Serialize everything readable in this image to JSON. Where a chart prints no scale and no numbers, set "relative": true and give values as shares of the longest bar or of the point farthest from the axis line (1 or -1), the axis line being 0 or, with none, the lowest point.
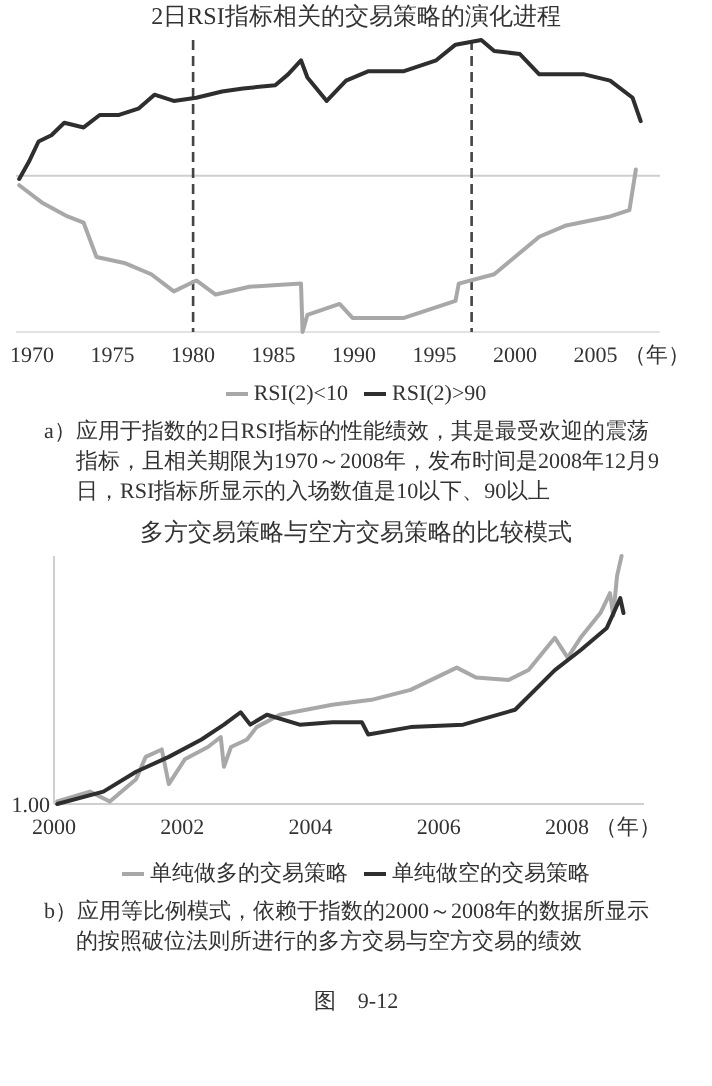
{
  "chart_data": [
    {
      "type": "line",
      "title": "2日RSI指标相关的交易策略的演化进程",
      "relative": true,
      "xlabel": "（年）",
      "xlim": [
        1969,
        2009
      ],
      "xticks": [
        1970,
        1975,
        1980,
        1985,
        1990,
        1995,
        2000,
        2005
      ],
      "legend": "bottom",
      "grid": false,
      "ref_lines": [
        {
          "axis": "x",
          "value": 1980,
          "color": "#444444",
          "line_style": "dashed"
        },
        {
          "axis": "x",
          "value": 1997.3,
          "color": "#444444",
          "line_style": "dashed"
        }
      ],
      "series": [
        {
          "name": "RSI(2)<10",
          "color": "#a8a8a8",
          "x": [
            1969.2,
            1970.6,
            1972.2,
            1973.2,
            1974.0,
            1975.8,
            1977.4,
            1978.8,
            1980.2,
            1981.4,
            1983.5,
            1986.7,
            1986.8,
            1987.1,
            1989.1,
            1989.9,
            1993.1,
            1996.3,
            1996.5,
            1998.7,
            2001.5,
            2003.1,
            2005.9,
            2007.1,
            2007.5
          ],
          "values": [
            -0.06,
            -0.17,
            -0.26,
            -0.3,
            -0.52,
            -0.56,
            -0.63,
            -0.74,
            -0.67,
            -0.76,
            -0.71,
            -0.69,
            -1.0,
            -0.89,
            -0.82,
            -0.91,
            -0.91,
            -0.8,
            -0.69,
            -0.63,
            -0.39,
            -0.32,
            -0.26,
            -0.22,
            0.04
          ]
        },
        {
          "name": "RSI(2)>90",
          "color": "#2e2e2e",
          "x": [
            1969.2,
            1969.8,
            1970.4,
            1971.2,
            1972.0,
            1973.2,
            1974.2,
            1975.4,
            1976.6,
            1977.6,
            1978.8,
            1980.2,
            1981.8,
            1983.1,
            1985.1,
            1985.9,
            1986.7,
            1987.1,
            1988.3,
            1989.5,
            1990.9,
            1993.1,
            1995.1,
            1996.3,
            1997.9,
            1998.7,
            2000.3,
            2001.5,
            2004.3,
            2005.9,
            2007.3,
            2007.8
          ],
          "values": [
            -0.02,
            0.09,
            0.22,
            0.26,
            0.34,
            0.31,
            0.39,
            0.39,
            0.43,
            0.52,
            0.48,
            0.5,
            0.54,
            0.56,
            0.58,
            0.65,
            0.74,
            0.63,
            0.48,
            0.61,
            0.67,
            0.67,
            0.74,
            0.84,
            0.87,
            0.8,
            0.78,
            0.65,
            0.65,
            0.61,
            0.5,
            0.35
          ]
        }
      ],
      "annotations": [
        "a）应用于指数的2日RSI指标的性能绩效，其是最受欢迎的震荡指标，且相关期限为1970～2008年，发布时间是2008年12月9日，RSI指标所显示的入场数值是10以下、90以上"
      ]
    },
    {
      "type": "line",
      "title": "多方交易策略与空方交易策略的比较模式",
      "relative": true,
      "xlabel": "（年）",
      "xlim": [
        2000,
        2009.2
      ],
      "xticks": [
        2000,
        2002,
        2004,
        2006,
        2008
      ],
      "legend": "bottom",
      "grid": false,
      "series": [
        {
          "name": "单纯做多的交易策略",
          "color": "#a8a8a8",
          "x": [
            2000.05,
            2000.56,
            2000.87,
            2001.28,
            2001.43,
            2001.68,
            2001.79,
            2002.04,
            2002.4,
            2002.6,
            2002.65,
            2002.76,
            2003.01,
            2003.16,
            2003.52,
            2004.34,
            2004.95,
            2005.56,
            2006.28,
            2006.58,
            2007.09,
            2007.4,
            2007.81,
            2008.01,
            2008.21,
            2008.52,
            2008.67,
            2008.72,
            2008.78,
            2008.85
          ],
          "values": [
            0.01,
            0.05,
            0.01,
            0.1,
            0.19,
            0.22,
            0.08,
            0.18,
            0.23,
            0.27,
            0.15,
            0.23,
            0.26,
            0.31,
            0.36,
            0.4,
            0.42,
            0.46,
            0.55,
            0.51,
            0.5,
            0.54,
            0.67,
            0.59,
            0.67,
            0.77,
            0.85,
            0.76,
            0.92,
            1.0
          ]
        },
        {
          "name": "单纯做空的交易策略",
          "color": "#2e2e2e",
          "x": [
            2000.05,
            2000.77,
            2001.28,
            2001.79,
            2002.3,
            2002.65,
            2002.91,
            2003.06,
            2003.32,
            2003.83,
            2004.34,
            2004.8,
            2004.9,
            2005.56,
            2006.38,
            2007.19,
            2007.81,
            2008.21,
            2008.62,
            2008.83,
            2008.88
          ],
          "values": [
            0,
            0.05,
            0.13,
            0.19,
            0.26,
            0.32,
            0.37,
            0.32,
            0.36,
            0.32,
            0.33,
            0.33,
            0.28,
            0.31,
            0.32,
            0.38,
            0.54,
            0.62,
            0.71,
            0.83,
            0.77
          ]
        }
      ],
      "annotations": [
        "b）应用等比例模式，依赖于指数的2000～2008年的数据所显示的按照破位法则所进行的多方交易与空方交易的绩效",
        "1.00",
        "图　9-12"
      ]
    }
  ]
}
